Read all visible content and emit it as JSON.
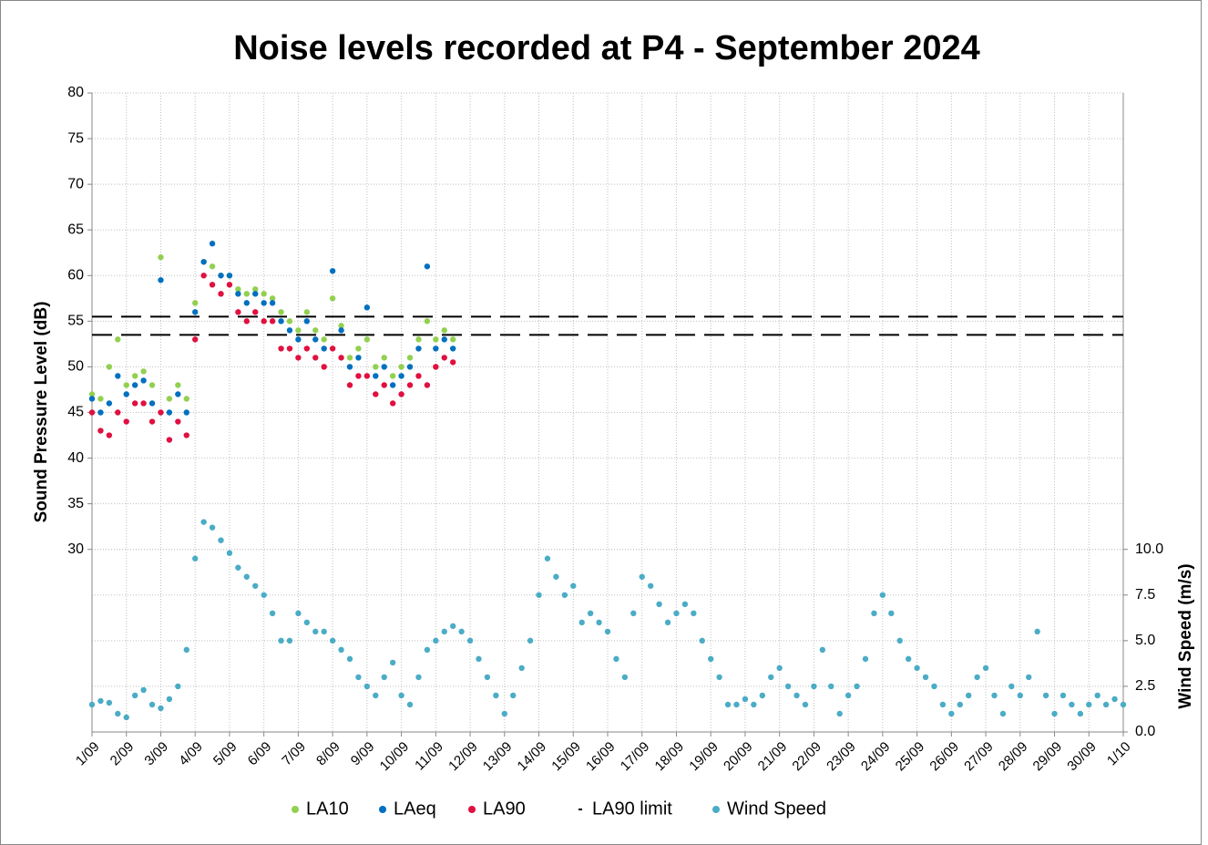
{
  "chart_data": {
    "type": "scatter",
    "title": "Noise levels recorded at P4 - September 2024",
    "ylabel": "Sound Pressure Level (dB)",
    "y2label": "Wind Speed (m/s)",
    "xlim": [
      1,
      31
    ],
    "xticks": [
      {
        "value": 1,
        "label": "1/09"
      },
      {
        "value": 2,
        "label": "2/09"
      },
      {
        "value": 3,
        "label": "3/09"
      },
      {
        "value": 4,
        "label": "4/09"
      },
      {
        "value": 5,
        "label": "5/09"
      },
      {
        "value": 6,
        "label": "6/09"
      },
      {
        "value": 7,
        "label": "7/09"
      },
      {
        "value": 8,
        "label": "8/09"
      },
      {
        "value": 9,
        "label": "9/09"
      },
      {
        "value": 10,
        "label": "10/09"
      },
      {
        "value": 11,
        "label": "11/09"
      },
      {
        "value": 12,
        "label": "12/09"
      },
      {
        "value": 13,
        "label": "13/09"
      },
      {
        "value": 14,
        "label": "14/09"
      },
      {
        "value": 15,
        "label": "15/09"
      },
      {
        "value": 16,
        "label": "16/09"
      },
      {
        "value": 17,
        "label": "17/09"
      },
      {
        "value": 18,
        "label": "18/09"
      },
      {
        "value": 19,
        "label": "19/09"
      },
      {
        "value": 20,
        "label": "20/09"
      },
      {
        "value": 21,
        "label": "21/09"
      },
      {
        "value": 22,
        "label": "22/09"
      },
      {
        "value": 23,
        "label": "23/09"
      },
      {
        "value": 24,
        "label": "24/09"
      },
      {
        "value": 25,
        "label": "25/09"
      },
      {
        "value": 26,
        "label": "26/09"
      },
      {
        "value": 27,
        "label": "27/09"
      },
      {
        "value": 28,
        "label": "28/09"
      },
      {
        "value": 29,
        "label": "29/09"
      },
      {
        "value": 30,
        "label": "30/09"
      },
      {
        "value": 31,
        "label": "1/10"
      }
    ],
    "ylim": [
      10,
      80
    ],
    "yticks": [
      30,
      35,
      40,
      45,
      50,
      55,
      60,
      65,
      70,
      75,
      80
    ],
    "y2lim": [
      0,
      35
    ],
    "y2ticks": [
      {
        "value": 0,
        "label": "0.0"
      },
      {
        "value": 2.5,
        "label": "2.5"
      },
      {
        "value": 5,
        "label": "5.0"
      },
      {
        "value": 7.5,
        "label": "7.5"
      },
      {
        "value": 10,
        "label": "10.0"
      }
    ],
    "grid": true,
    "legend": "bottom",
    "series": [
      {
        "name": "LA10",
        "color": "#92d050",
        "x": [
          1,
          1.25,
          1.5,
          1.75,
          2,
          2.25,
          2.5,
          2.75,
          3,
          3.25,
          3.5,
          3.75,
          4,
          4.25,
          4.5,
          4.75,
          5,
          5.25,
          5.5,
          5.75,
          6,
          6.25,
          6.5,
          6.75,
          7,
          7.25,
          7.5,
          7.75,
          8,
          8.25,
          8.5,
          8.75,
          9,
          9.25,
          9.5,
          9.75,
          10,
          10.25,
          10.5,
          10.75,
          11,
          11.25,
          11.5
        ],
        "values": [
          47,
          46.5,
          50,
          53,
          48,
          49,
          49.5,
          48,
          62,
          46.5,
          48,
          46.5,
          57,
          61.5,
          61,
          60,
          60,
          58.5,
          58,
          58.5,
          58,
          57.5,
          56,
          55,
          54,
          56,
          54,
          53,
          57.5,
          54.5,
          51,
          52,
          53,
          50,
          51,
          49,
          50,
          51,
          53,
          55,
          53,
          54,
          53
        ]
      },
      {
        "name": "LAeq",
        "color": "#0070c0",
        "x": [
          1,
          1.25,
          1.5,
          1.75,
          2,
          2.25,
          2.5,
          2.75,
          3,
          3.25,
          3.5,
          3.75,
          4,
          4.25,
          4.5,
          4.75,
          5,
          5.25,
          5.5,
          5.75,
          6,
          6.25,
          6.5,
          6.75,
          7,
          7.25,
          7.5,
          7.75,
          8,
          8.25,
          8.5,
          8.75,
          9,
          9.25,
          9.5,
          9.75,
          10,
          10.25,
          10.5,
          10.75,
          11,
          11.25,
          11.5
        ],
        "values": [
          46.5,
          45,
          46,
          49,
          47,
          48,
          48.5,
          46,
          59.5,
          45,
          47,
          45,
          56,
          61.5,
          63.5,
          60,
          60,
          58,
          57,
          58,
          57,
          57,
          55,
          54,
          53,
          55,
          53,
          52,
          60.5,
          54,
          50,
          51,
          56.5,
          49,
          50,
          48,
          49,
          50,
          52,
          61,
          52,
          53,
          52
        ]
      },
      {
        "name": "LA90",
        "color": "#e0103f",
        "x": [
          1,
          1.25,
          1.5,
          1.75,
          2,
          2.25,
          2.5,
          2.75,
          3,
          3.25,
          3.5,
          3.75,
          4,
          4.25,
          4.5,
          4.75,
          5,
          5.25,
          5.5,
          5.75,
          6,
          6.25,
          6.5,
          6.75,
          7,
          7.25,
          7.5,
          7.75,
          8,
          8.25,
          8.5,
          8.75,
          9,
          9.25,
          9.5,
          9.75,
          10,
          10.25,
          10.5,
          10.75,
          11,
          11.25,
          11.5
        ],
        "values": [
          45,
          43,
          42.5,
          45,
          44,
          46,
          46,
          44,
          45,
          42,
          44,
          42.5,
          53,
          60,
          59,
          58,
          59,
          56,
          55,
          56,
          55,
          55,
          52,
          52,
          51,
          52,
          51,
          50,
          52,
          51,
          48,
          49,
          49,
          47,
          48,
          46,
          47,
          48,
          49,
          48,
          50,
          51,
          50.5
        ]
      },
      {
        "name": "LA90 limit",
        "color": "#000000",
        "kind": "hline",
        "values": [
          55.5,
          53.5
        ]
      },
      {
        "name": "Wind Speed",
        "color": "#4bacc6",
        "axis": "y2",
        "x": [
          1,
          1.25,
          1.5,
          1.75,
          2,
          2.25,
          2.5,
          2.75,
          3,
          3.25,
          3.5,
          3.75,
          4,
          4.25,
          4.5,
          4.75,
          5,
          5.25,
          5.5,
          5.75,
          6,
          6.25,
          6.5,
          6.75,
          7,
          7.25,
          7.5,
          7.75,
          8,
          8.25,
          8.5,
          8.75,
          9,
          9.25,
          9.5,
          9.75,
          10,
          10.25,
          10.5,
          10.75,
          11,
          11.25,
          11.5,
          11.75,
          12,
          12.25,
          12.5,
          12.75,
          13,
          13.25,
          13.5,
          13.75,
          14,
          14.25,
          14.5,
          14.75,
          15,
          15.25,
          15.5,
          15.75,
          16,
          16.25,
          16.5,
          16.75,
          17,
          17.25,
          17.5,
          17.75,
          18,
          18.25,
          18.5,
          18.75,
          19,
          19.25,
          19.5,
          19.75,
          20,
          20.25,
          20.5,
          20.75,
          21,
          21.25,
          21.5,
          21.75,
          22,
          22.25,
          22.5,
          22.75,
          23,
          23.25,
          23.5,
          23.75,
          24,
          24.25,
          24.5,
          24.75,
          25,
          25.25,
          25.5,
          25.75,
          26,
          26.25,
          26.5,
          26.75,
          27,
          27.25,
          27.5,
          27.75,
          28,
          28.25,
          28.5,
          28.75,
          29,
          29.25,
          29.5,
          29.75,
          30,
          30.25,
          30.5,
          30.75,
          31
        ],
        "values": [
          1.5,
          1.7,
          1.6,
          1.0,
          0.8,
          2.0,
          2.3,
          1.5,
          1.3,
          1.8,
          2.5,
          4.5,
          9.5,
          11.5,
          11.2,
          10.5,
          9.8,
          9.0,
          8.5,
          8.0,
          7.5,
          6.5,
          5.0,
          5.0,
          6.5,
          6.0,
          5.5,
          5.5,
          5.0,
          4.5,
          4.0,
          3.0,
          2.5,
          2.0,
          3.0,
          3.8,
          2.0,
          1.5,
          3.0,
          4.5,
          5.0,
          5.5,
          5.8,
          5.5,
          5.0,
          4.0,
          3.0,
          2.0,
          1.0,
          2.0,
          3.5,
          5.0,
          7.5,
          9.5,
          8.5,
          7.5,
          8.0,
          6.0,
          6.5,
          6.0,
          5.5,
          4.0,
          3.0,
          6.5,
          8.5,
          8.0,
          7.0,
          6.0,
          6.5,
          7.0,
          6.5,
          5.0,
          4.0,
          3.0,
          1.5,
          1.5,
          1.8,
          1.5,
          2.0,
          3.0,
          3.5,
          2.5,
          2.0,
          1.5,
          2.5,
          4.5,
          2.5,
          1.0,
          2.0,
          2.5,
          4.0,
          6.5,
          7.5,
          6.5,
          5.0,
          4.0,
          3.5,
          3.0,
          2.5,
          1.5,
          1.0,
          1.5,
          2.0,
          3.0,
          3.5,
          2.0,
          1.0,
          2.5,
          2.0,
          3.0,
          5.5,
          2.0,
          1.0,
          2.0,
          1.5,
          1.0,
          1.5,
          2.0,
          1.5,
          1.8,
          1.5
        ]
      }
    ]
  }
}
